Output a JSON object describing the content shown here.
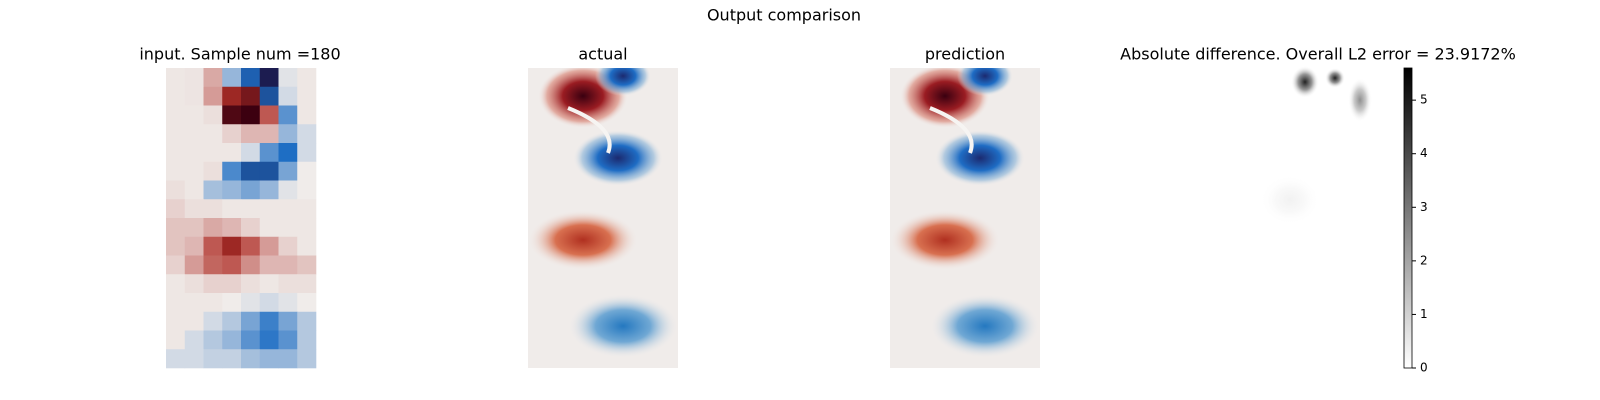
{
  "title": "Output comparison",
  "chart_data": [
    {
      "type": "heatmap",
      "title": "input. Sample num =180",
      "zlim": [
        -1,
        1
      ],
      "values": [
        [
          0.02,
          0.03,
          0.25,
          -0.3,
          -0.75,
          -1,
          -0.05,
          0.02
        ],
        [
          0.02,
          0.03,
          0.3,
          0.75,
          0.85,
          -0.8,
          -0.1,
          0.02
        ],
        [
          0.02,
          0.02,
          0.05,
          0.95,
          1,
          0.55,
          -0.5,
          0.02
        ],
        [
          0.02,
          0.02,
          0.02,
          0.1,
          0.2,
          0.2,
          -0.3,
          -0.1
        ],
        [
          0.02,
          0.02,
          0.02,
          0.02,
          -0.1,
          -0.5,
          -0.7,
          -0.1
        ],
        [
          0.02,
          0.02,
          0.05,
          -0.55,
          -0.8,
          -0.8,
          -0.4,
          0
        ],
        [
          0.05,
          0.02,
          -0.25,
          -0.3,
          -0.4,
          -0.3,
          -0.05,
          0
        ],
        [
          0.1,
          0.05,
          0.05,
          0.02,
          0.02,
          0.02,
          0.02,
          0.02
        ],
        [
          0.15,
          0.15,
          0.25,
          0.2,
          0.1,
          0.02,
          0.02,
          0.02
        ],
        [
          0.15,
          0.2,
          0.55,
          0.75,
          0.55,
          0.3,
          0.1,
          0.02
        ],
        [
          0.1,
          0.3,
          0.5,
          0.55,
          0.35,
          0.2,
          0.2,
          0.15
        ],
        [
          0.02,
          0.05,
          0.1,
          0.1,
          0.05,
          0.02,
          0.05,
          0.05
        ],
        [
          0.02,
          0.02,
          0.02,
          0,
          -0.05,
          -0.1,
          -0.05,
          0
        ],
        [
          0.02,
          0.02,
          -0.1,
          -0.2,
          -0.4,
          -0.6,
          -0.4,
          -0.2
        ],
        [
          0.02,
          -0.1,
          -0.2,
          -0.3,
          -0.5,
          -0.65,
          -0.5,
          -0.2
        ],
        [
          -0.1,
          -0.1,
          -0.15,
          -0.15,
          -0.25,
          -0.3,
          -0.3,
          -0.2
        ]
      ]
    },
    {
      "type": "image",
      "title": "actual"
    },
    {
      "type": "image",
      "title": "prediction"
    },
    {
      "type": "image",
      "title": "Absolute difference. Overall L2 error = 23.9172%",
      "colorbar": {
        "ylim": [
          0,
          5.6
        ],
        "yticks": [
          0,
          1,
          2,
          3,
          4,
          5
        ]
      }
    }
  ]
}
